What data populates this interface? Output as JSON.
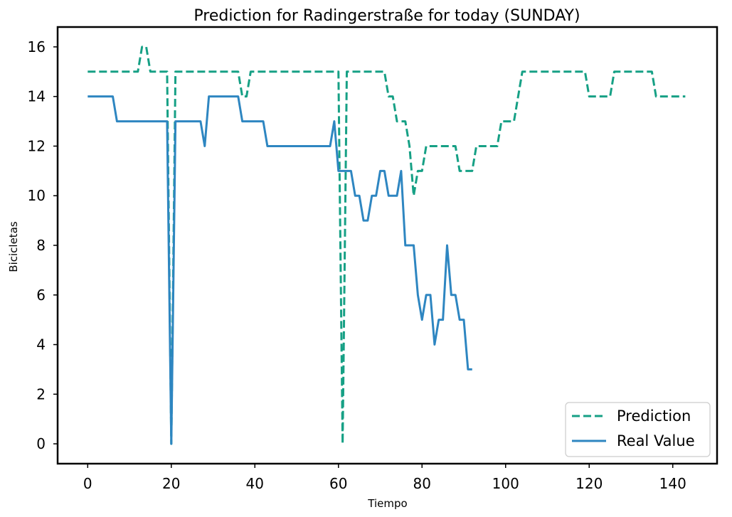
{
  "chart_data": {
    "type": "line",
    "title": "Prediction for Radingerstraße for today (SUNDAY)",
    "xlabel": "Tiempo",
    "ylabel": "Bicicletas",
    "xlim": [
      -7.2,
      150.6
    ],
    "ylim": [
      -0.8,
      16.8
    ],
    "xticks": [
      0,
      20,
      40,
      60,
      80,
      100,
      120,
      140
    ],
    "yticks": [
      0,
      2,
      4,
      6,
      8,
      10,
      12,
      14,
      16
    ],
    "grid": false,
    "legend_position": "lower-right",
    "series": [
      {
        "name": "Prediction",
        "color": "#16a085",
        "dash": "dashed",
        "x": [
          0,
          12,
          13,
          14,
          15,
          18,
          19,
          20,
          21,
          36,
          37,
          38,
          39,
          59,
          60,
          61,
          62,
          70,
          71,
          72,
          73,
          74,
          75,
          76,
          77,
          78,
          79,
          80,
          81,
          87,
          88,
          89,
          92,
          93,
          95,
          96,
          98,
          99,
          100,
          102,
          103,
          104,
          118,
          119,
          120,
          125,
          126,
          127,
          134,
          135,
          136,
          143
        ],
        "y": [
          15,
          15,
          16,
          16,
          15,
          15,
          15,
          0,
          15,
          15,
          14,
          14,
          15,
          15,
          15,
          0,
          15,
          15,
          15,
          14,
          14,
          13,
          13,
          13,
          12,
          10,
          11,
          11,
          12,
          12,
          12,
          11,
          11,
          12,
          12,
          12,
          12,
          13,
          13,
          13,
          14,
          15,
          15,
          15,
          14,
          14,
          15,
          15,
          15,
          15,
          14,
          14
        ]
      },
      {
        "name": "Real Value",
        "color": "#2e86c1",
        "dash": "solid",
        "x": [
          0,
          6,
          7,
          19,
          20,
          21,
          27,
          28,
          29,
          36,
          37,
          42,
          43,
          58,
          59,
          60,
          63,
          64,
          65,
          66,
          67,
          68,
          69,
          70,
          71,
          72,
          73,
          74,
          75,
          76,
          78,
          79,
          80,
          81,
          82,
          83,
          84,
          85,
          86,
          87,
          88,
          89,
          90,
          91,
          92
        ],
        "y": [
          14,
          14,
          13,
          13,
          0,
          13,
          13,
          12,
          14,
          14,
          13,
          13,
          12,
          12,
          13,
          11,
          11,
          10,
          10,
          9,
          9,
          10,
          10,
          11,
          11,
          10,
          10,
          10,
          11,
          8,
          8,
          6,
          5,
          6,
          6,
          4,
          5,
          5,
          8,
          6,
          6,
          5,
          5,
          3,
          3
        ]
      }
    ]
  }
}
